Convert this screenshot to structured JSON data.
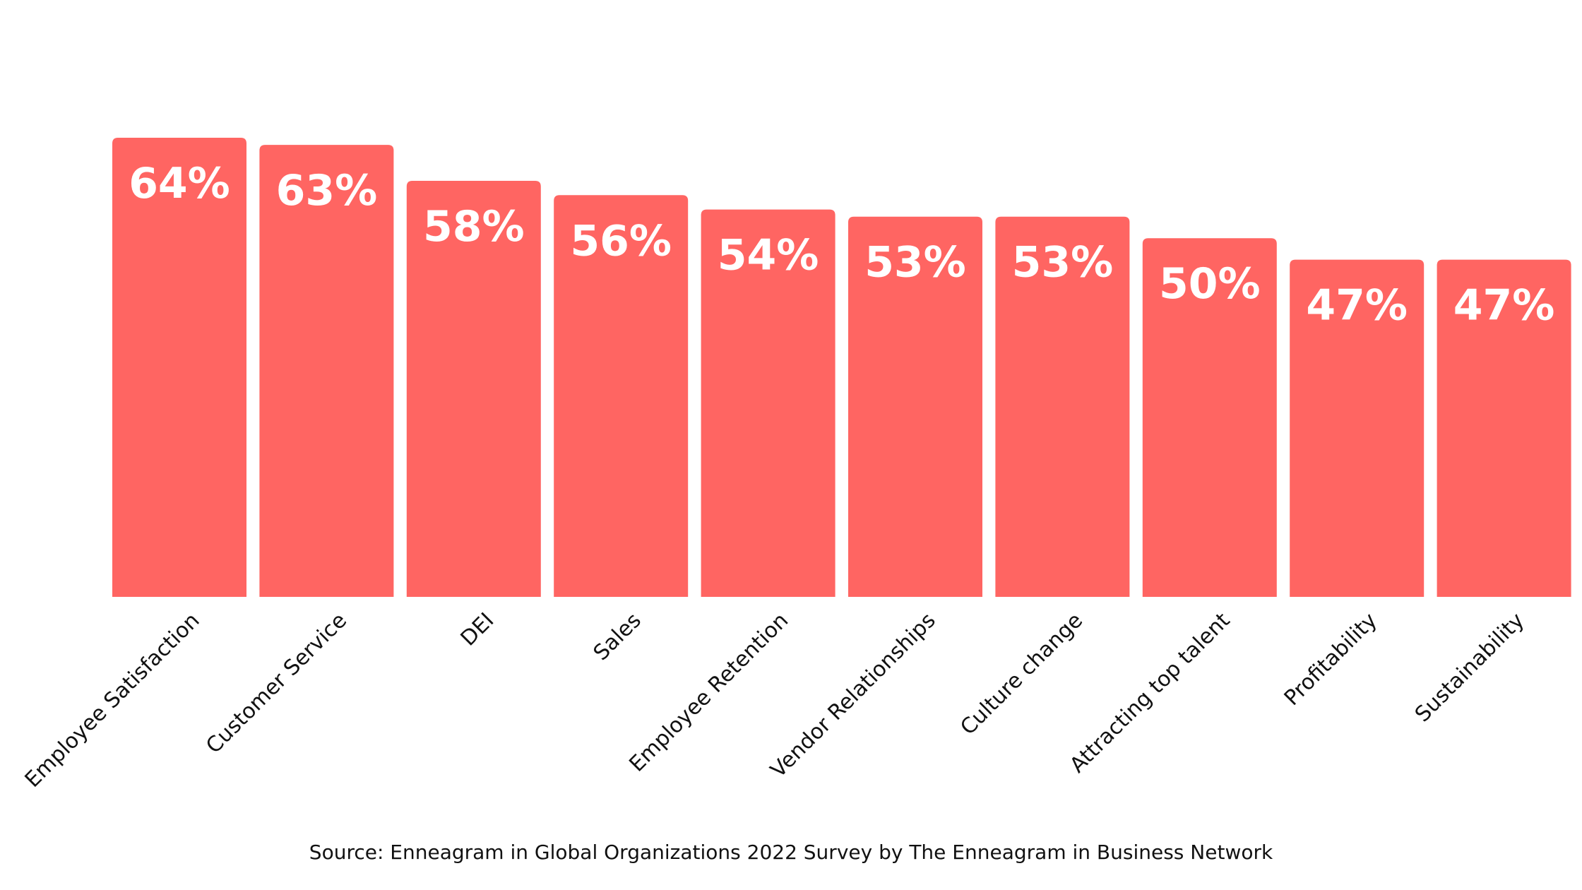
{
  "chart_data": {
    "type": "bar",
    "title": "",
    "xlabel": "",
    "ylabel": "",
    "categories": [
      "Employee Satisfaction",
      "Customer Service",
      "DEI",
      "Sales",
      "Employee Retention",
      "Vendor Relationships",
      "Culture change",
      "Attracting top talent",
      "Profitability",
      "Sustainability"
    ],
    "values": [
      64,
      63,
      58,
      56,
      54,
      53,
      53,
      50,
      47,
      47
    ],
    "value_labels": [
      "64%",
      "63%",
      "58%",
      "56%",
      "54%",
      "53%",
      "53%",
      "50%",
      "47%",
      "47%"
    ],
    "ylim": [
      0,
      64
    ],
    "grid": false,
    "legend": "none",
    "bar_color": "#ff6562",
    "label_color": "#ffffff",
    "category_label_color": "#111111"
  },
  "source_note": "Source: Enneagram in Global Organizations 2022 Survey by The Enneagram in Business Network"
}
